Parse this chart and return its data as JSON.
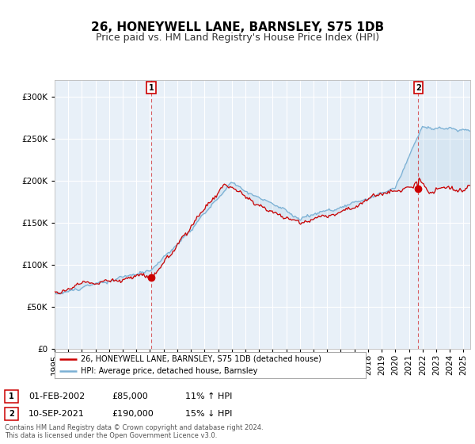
{
  "title": "26, HONEYWELL LANE, BARNSLEY, S75 1DB",
  "subtitle": "Price paid vs. HM Land Registry's House Price Index (HPI)",
  "xlim_start": 1995.0,
  "xlim_end": 2025.5,
  "ylim": [
    0,
    320000
  ],
  "yticks": [
    0,
    50000,
    100000,
    150000,
    200000,
    250000,
    300000
  ],
  "xtick_years": [
    1995,
    1996,
    1997,
    1998,
    1999,
    2000,
    2001,
    2002,
    2003,
    2004,
    2005,
    2006,
    2007,
    2008,
    2009,
    2010,
    2011,
    2012,
    2013,
    2014,
    2015,
    2016,
    2017,
    2018,
    2019,
    2020,
    2021,
    2022,
    2023,
    2024,
    2025
  ],
  "sale1_x": 2002.085,
  "sale1_y": 85000,
  "sale1_label": "1",
  "sale2_x": 2021.69,
  "sale2_y": 190000,
  "sale2_label": "2",
  "property_line_color": "#cc0000",
  "hpi_line_color": "#7ab0d4",
  "plot_bg_color": "#e8f0f8",
  "bg_color": "#ffffff",
  "grid_color": "#ffffff",
  "legend_label_property": "26, HONEYWELL LANE, BARNSLEY, S75 1DB (detached house)",
  "legend_label_hpi": "HPI: Average price, detached house, Barnsley",
  "annotation1_date": "01-FEB-2002",
  "annotation1_price": "£85,000",
  "annotation1_hpi": "11% ↑ HPI",
  "annotation2_date": "10-SEP-2021",
  "annotation2_price": "£190,000",
  "annotation2_hpi": "15% ↓ HPI",
  "footer": "Contains HM Land Registry data © Crown copyright and database right 2024.\nThis data is licensed under the Open Government Licence v3.0.",
  "title_fontsize": 11,
  "subtitle_fontsize": 9,
  "tick_fontsize": 7.5
}
